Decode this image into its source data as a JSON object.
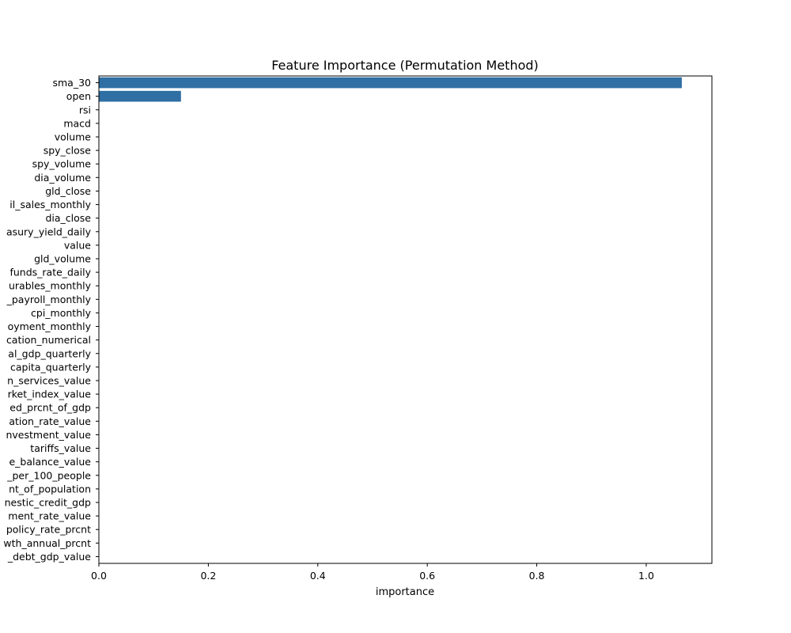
{
  "chart_data": {
    "type": "bar",
    "orientation": "horizontal",
    "title": "Feature Importance (Permutation Method)",
    "xlabel": "importance",
    "ylabel": "",
    "xlim": [
      0,
      1.12
    ],
    "xticks": [
      0,
      0.2,
      0.4,
      0.6,
      0.8,
      1.0
    ],
    "xtick_labels": [
      "0.0",
      "0.2",
      "0.4",
      "0.6",
      "0.8",
      "1.0"
    ],
    "grid": false,
    "bar_color": "#2f6fa3",
    "categories": [
      "sma_30",
      "open",
      "rsi",
      "macd",
      "volume",
      "spy_close",
      "spy_volume",
      "dia_volume",
      "gld_close",
      "il_sales_monthly",
      "dia_close",
      "asury_yield_daily",
      "value",
      "gld_volume",
      "funds_rate_daily",
      "urables_monthly",
      "_payroll_monthly",
      "cpi_monthly",
      "oyment_monthly",
      "cation_numerical",
      "al_gdp_quarterly",
      "capita_quarterly",
      "n_services_value",
      "rket_index_value",
      "ed_prcnt_of_gdp",
      "ation_rate_value",
      "nvestment_value",
      "tariffs_value",
      "e_balance_value",
      "_per_100_people",
      "nt_of_population",
      "nestic_credit_gdp",
      "ment_rate_value",
      "policy_rate_prcnt",
      "wth_annual_prcnt",
      "_debt_gdp_value"
    ],
    "values": [
      1.065,
      0.15,
      0,
      0,
      0,
      0,
      0,
      0,
      0,
      0,
      0,
      0,
      0,
      0,
      0,
      0,
      0,
      0,
      0,
      0,
      0,
      0,
      0,
      0,
      0,
      0,
      0,
      0,
      0,
      0,
      0,
      0,
      0,
      0,
      0,
      0
    ]
  }
}
